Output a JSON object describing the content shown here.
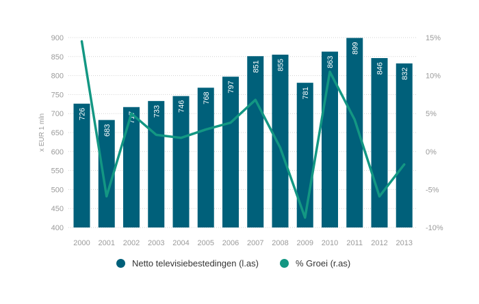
{
  "chart_data": {
    "type": "bar",
    "categories": [
      "2000",
      "2001",
      "2002",
      "2003",
      "2004",
      "2005",
      "2006",
      "2007",
      "2008",
      "2009",
      "2010",
      "2011",
      "2012",
      "2013"
    ],
    "series": [
      {
        "name": "Netto televisiebestedingen (l.as)",
        "axis": "left",
        "type": "bar",
        "color": "#00607a",
        "values": [
          726,
          683,
          717,
          733,
          746,
          768,
          797,
          851,
          855,
          781,
          863,
          899,
          846,
          832
        ]
      },
      {
        "name": "% Groei (r.as)",
        "axis": "right",
        "type": "line",
        "color": "#139783",
        "values": [
          14.5,
          -5.9,
          5.0,
          2.2,
          1.8,
          2.9,
          3.8,
          6.8,
          0.5,
          -8.7,
          10.5,
          4.2,
          -5.9,
          -1.7
        ]
      }
    ],
    "ylabel": "x EUR 1 mln",
    "ylim": [
      400,
      900
    ],
    "yticks": [
      "400",
      "450",
      "500",
      "550",
      "600",
      "650",
      "700",
      "750",
      "800",
      "850",
      "900"
    ],
    "y2lim": [
      -10,
      15
    ],
    "y2ticks": [
      "-10%",
      "-5%",
      "0%",
      "5%",
      "10%",
      "15%"
    ],
    "grid": true,
    "legend_position": "bottom"
  }
}
